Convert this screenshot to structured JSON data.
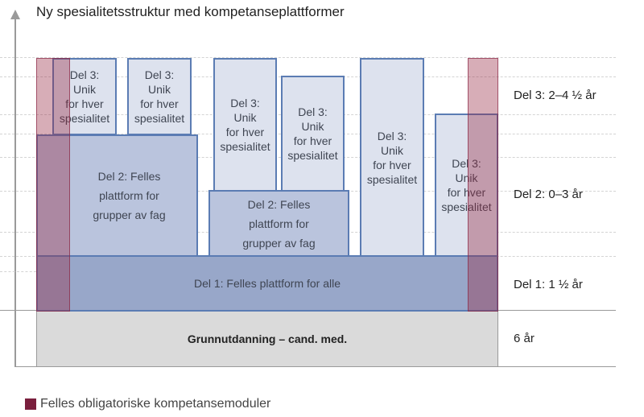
{
  "title": "Ny spesialitetsstruktur med kompetanseplattformer",
  "boxes": {
    "del3": [
      "Del 3:",
      "Unik",
      "for hver",
      "spesialitet"
    ],
    "del2": [
      "Del 2:  Felles",
      "plattform for",
      "grupper av fag"
    ],
    "del1": "Del 1: Felles plattform  for alle",
    "grunn": "Grunnutdanning – cand. med."
  },
  "durations": {
    "del3": "Del 3: 2–4 ½ år",
    "del2": "Del 2: 0–3 år",
    "del1": "Del 1: 1 ½ år",
    "grunn": "6 år"
  },
  "legend": {
    "label": "Felles obligatoriske kompetansemoduler",
    "color": "#7a1f3d"
  },
  "colors": {
    "del3": "#dde2ee",
    "del2": "#bac4dd",
    "del1": "#98a7c9",
    "grunn": "#dadada",
    "border": "#5b7cb3"
  }
}
